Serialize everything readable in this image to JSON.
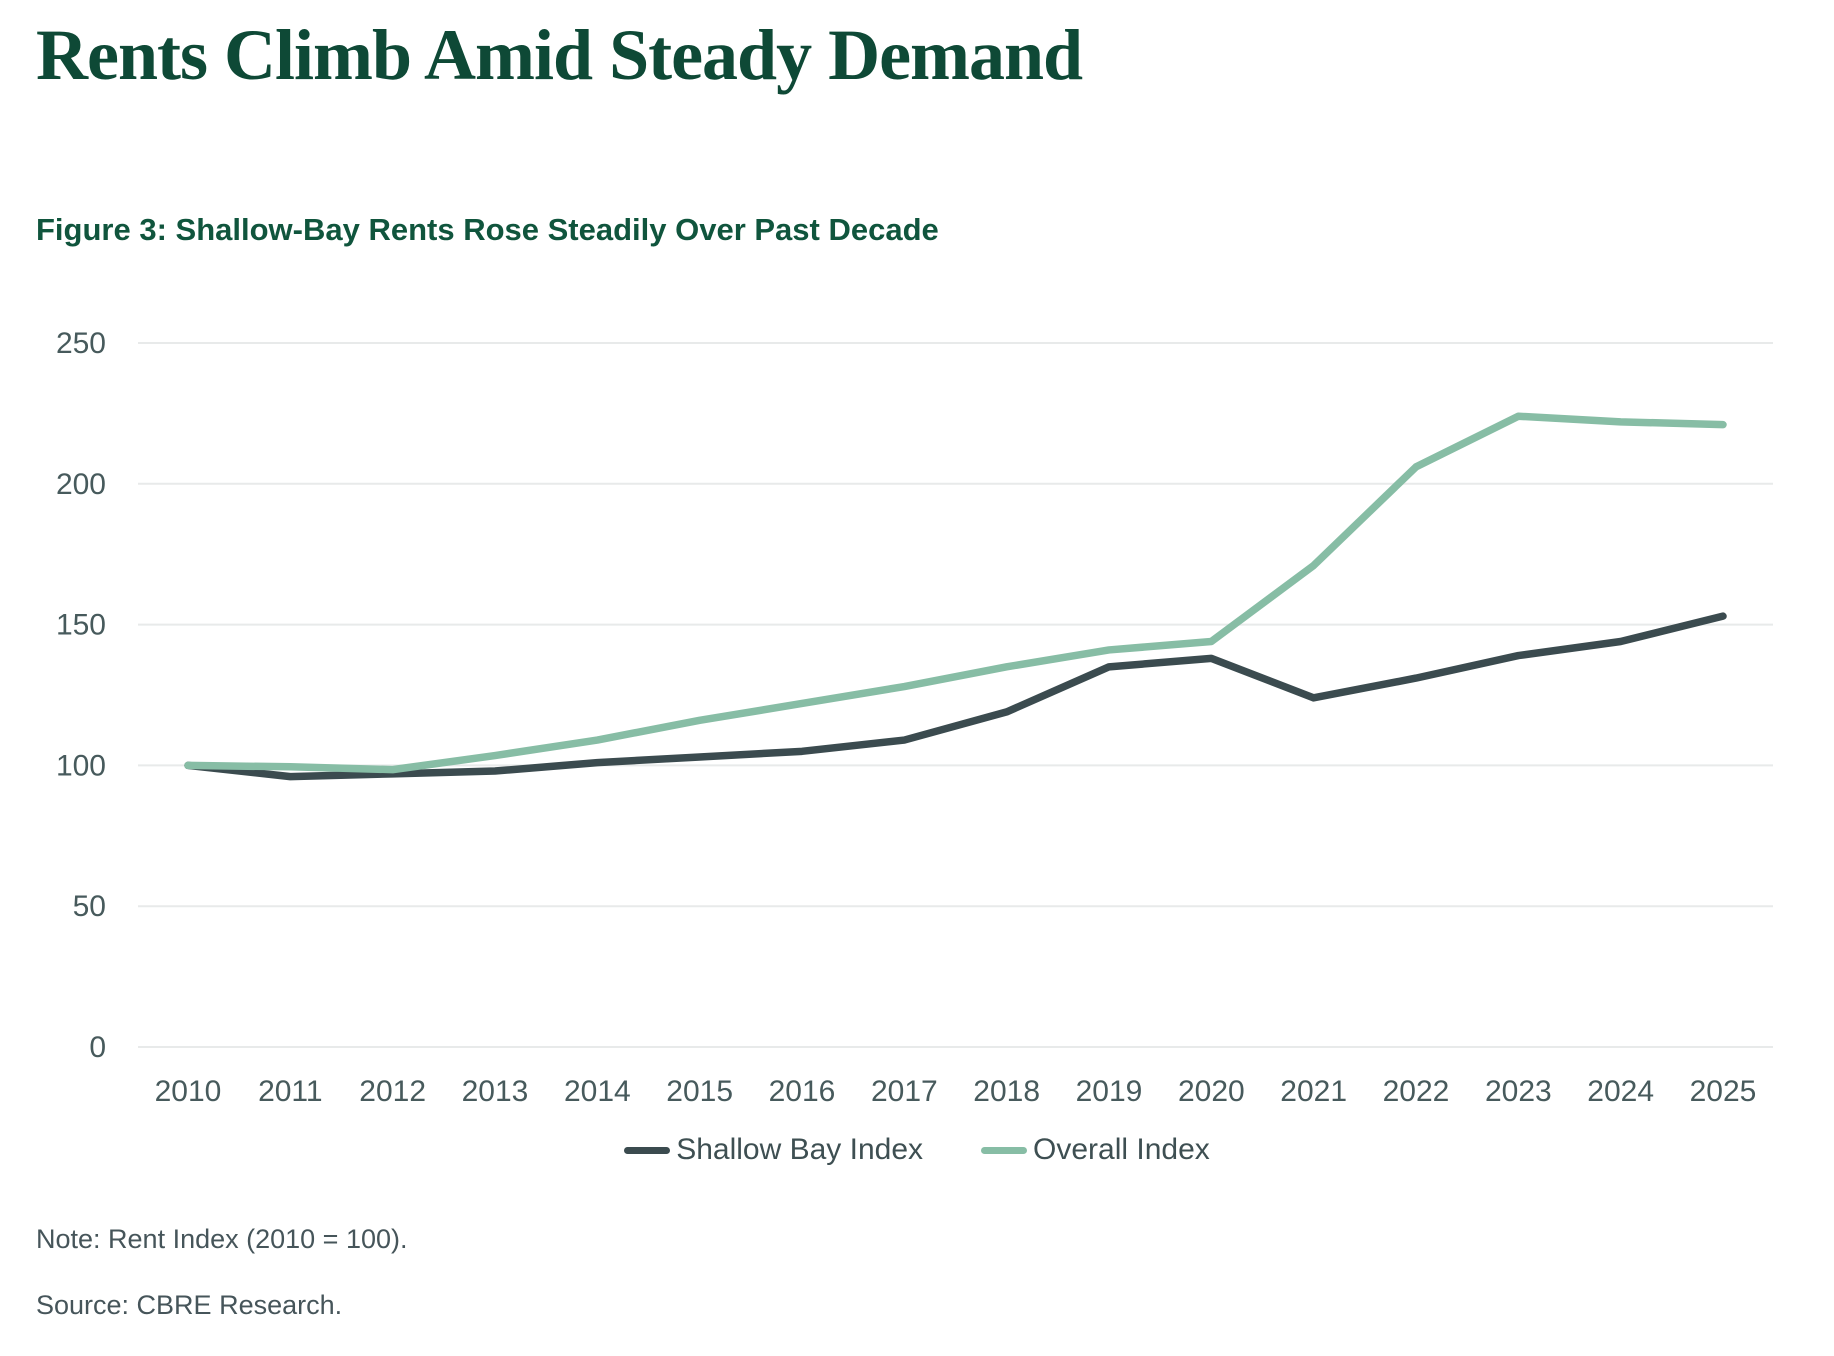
{
  "header": {
    "title": "Rents Climb Amid Steady Demand",
    "figure_label": "Figure 3: Shallow-Bay Rents Rose Steadily Over Past Decade"
  },
  "chart_data": {
    "type": "line",
    "x": [
      2010,
      2011,
      2012,
      2013,
      2014,
      2015,
      2016,
      2017,
      2018,
      2019,
      2020,
      2021,
      2022,
      2023,
      2024,
      2025
    ],
    "series": [
      {
        "name": "Shallow Bay Index",
        "color": "#3b4b4f",
        "values": [
          100,
          96,
          97,
          98,
          101,
          103,
          105,
          109,
          119,
          135,
          138,
          124,
          131,
          139,
          144,
          153
        ]
      },
      {
        "name": "Overall Index",
        "color": "#87bda5",
        "values": [
          100,
          99.5,
          98.5,
          103.5,
          109,
          116,
          122,
          128,
          135,
          141,
          144,
          171,
          206,
          224,
          222,
          221
        ]
      }
    ],
    "ylim": [
      0,
      250
    ],
    "yticks": [
      0,
      50,
      100,
      150,
      200,
      250
    ],
    "xlabel": "",
    "ylabel": "",
    "grid": "horizontal",
    "legend_position": "bottom"
  },
  "footer": {
    "note": "Note: Rent Index (2010 = 100).",
    "source": "Source: CBRE Research."
  },
  "colors": {
    "title_green": "#0e4936",
    "figure_label_green": "#10553d",
    "axis_text": "#475a5c",
    "gridline": "#e8eaea",
    "shallow_bay_line": "#3b4b4f",
    "overall_line": "#87bda5"
  }
}
